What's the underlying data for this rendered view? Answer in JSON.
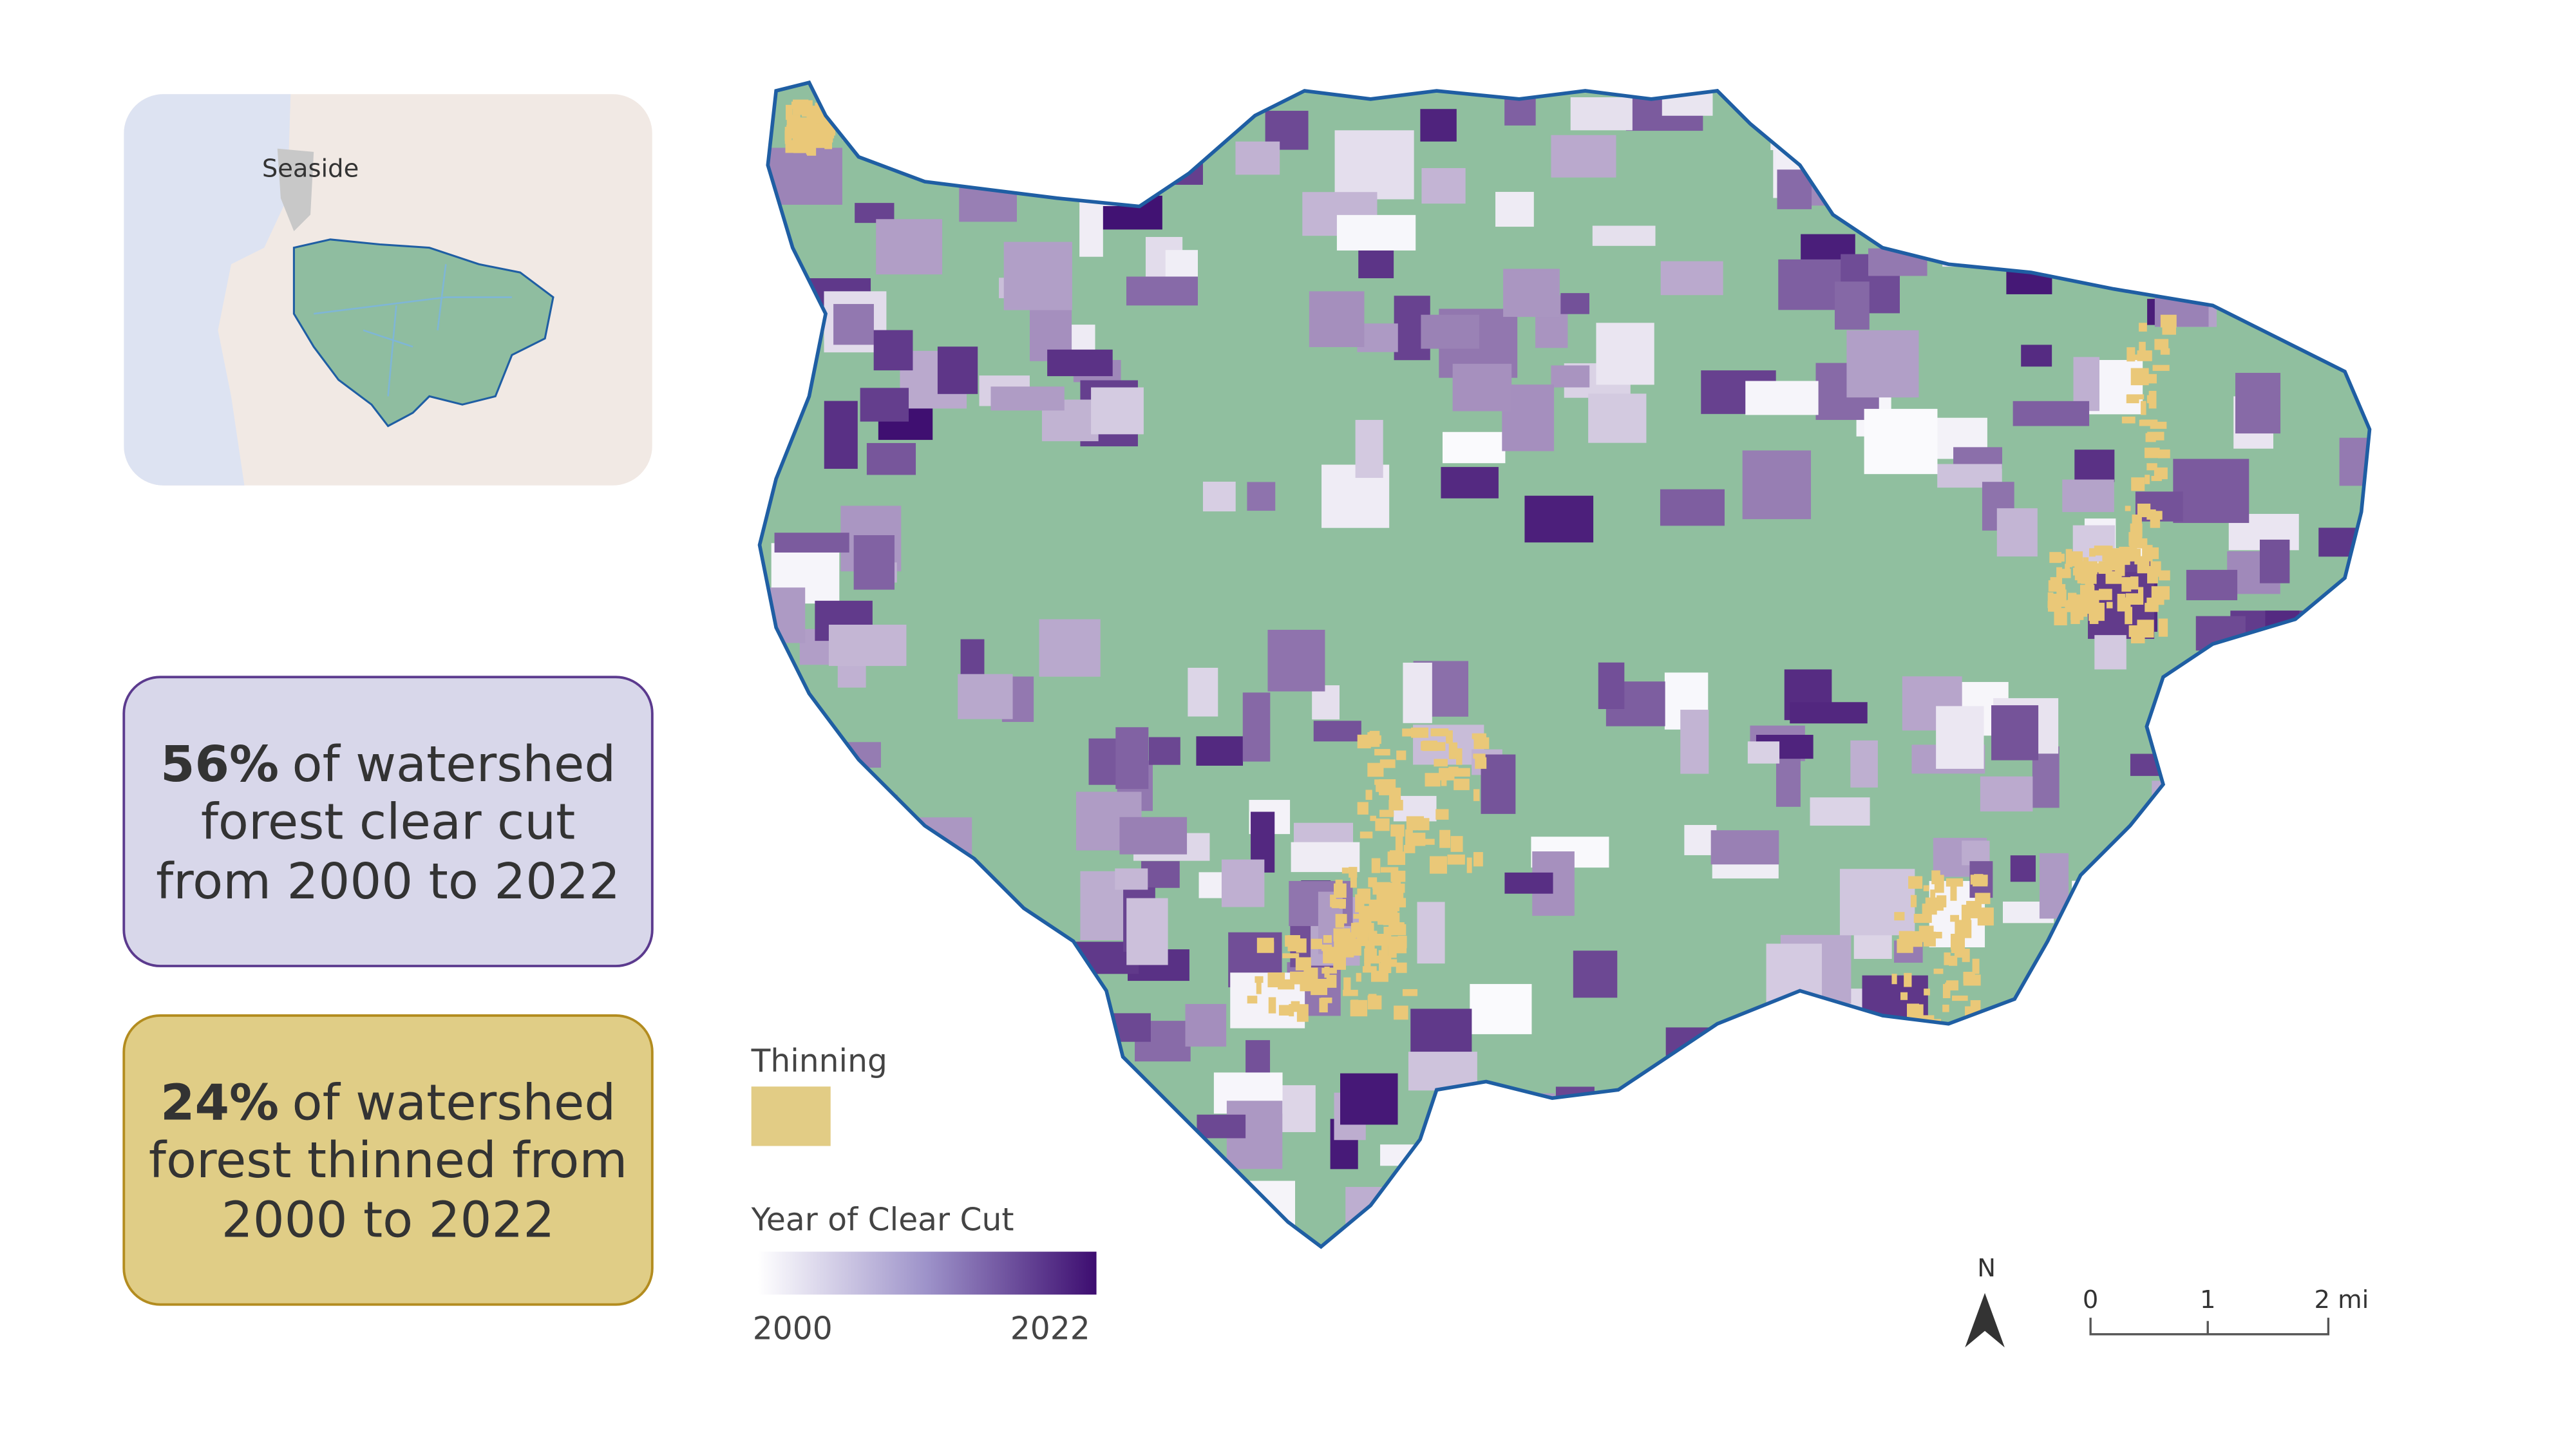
{
  "inset_map": {
    "place_label": "Seaside"
  },
  "stats": [
    {
      "value": "56%",
      "lines": [
        "of watershed",
        "forest clear cut",
        "from 2000 to 2022"
      ]
    },
    {
      "value": "24%",
      "lines": [
        "of watershed",
        "forest thinned from",
        "2000 to 2022"
      ]
    }
  ],
  "legend": {
    "thinning_label": "Thinning",
    "clear_cut_title": "Year of Clear Cut",
    "clear_cut_start": "2000",
    "clear_cut_end": "2022"
  },
  "north_arrow": "N",
  "scale_bar": [
    "0",
    "1",
    "2 mi"
  ]
}
